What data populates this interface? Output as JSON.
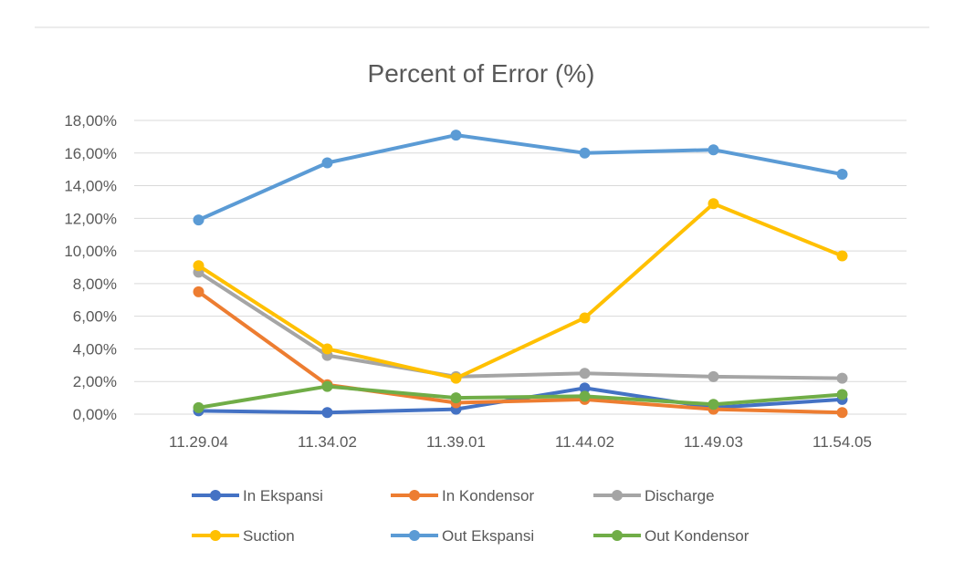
{
  "chart_data": {
    "type": "line",
    "title": "Percent of Error (%)",
    "xlabel": "",
    "ylabel": "",
    "categories": [
      "11.29.04",
      "11.34.02",
      "11.39.01",
      "11.44.02",
      "11.49.03",
      "11.54.05"
    ],
    "ylim": [
      0,
      18
    ],
    "yticks": [
      "0,00%",
      "2,00%",
      "4,00%",
      "6,00%",
      "8,00%",
      "10,00%",
      "12,00%",
      "14,00%",
      "16,00%",
      "18,00%"
    ],
    "grid": true,
    "legend_position": "bottom",
    "series": [
      {
        "name": "In Ekspansi",
        "color": "#4472C4",
        "values": [
          0.2,
          0.1,
          0.3,
          1.6,
          0.4,
          0.9
        ]
      },
      {
        "name": "In Kondensor",
        "color": "#ED7D31",
        "values": [
          7.5,
          1.8,
          0.7,
          0.9,
          0.3,
          0.1
        ]
      },
      {
        "name": "Discharge",
        "color": "#A5A5A5",
        "values": [
          8.7,
          3.6,
          2.3,
          2.5,
          2.3,
          2.2
        ]
      },
      {
        "name": "Suction",
        "color": "#FFC000",
        "values": [
          9.1,
          4.0,
          2.2,
          5.9,
          12.9,
          9.7
        ]
      },
      {
        "name": "Out Ekspansi",
        "color": "#5B9BD5",
        "values": [
          11.9,
          15.4,
          17.1,
          16.0,
          16.2,
          14.7
        ]
      },
      {
        "name": "Out Kondensor",
        "color": "#70AD47",
        "values": [
          0.4,
          1.7,
          1.0,
          1.1,
          0.6,
          1.2
        ]
      }
    ]
  }
}
